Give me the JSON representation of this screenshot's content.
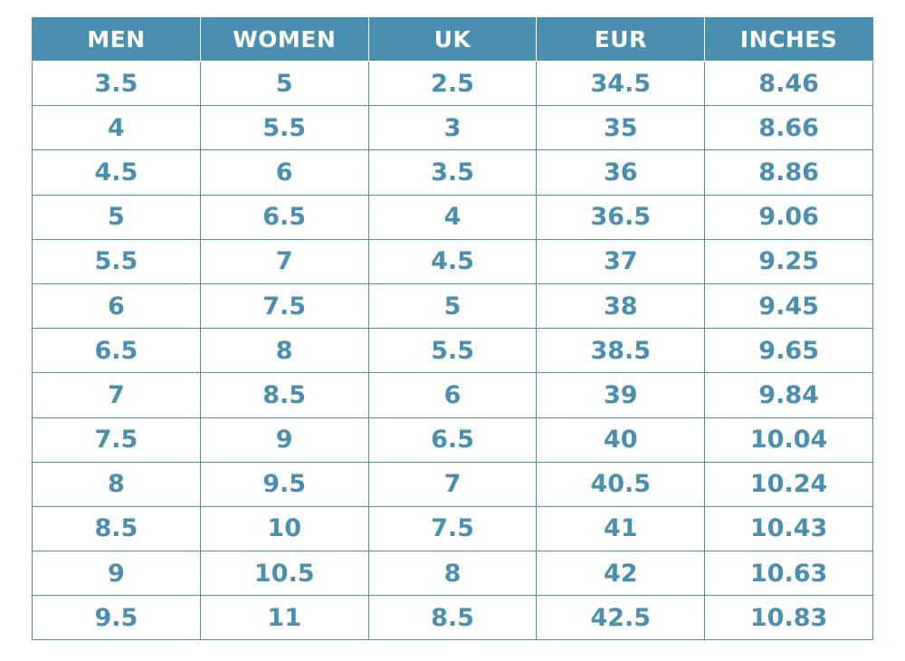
{
  "table": {
    "headers": [
      "MEN",
      "WOMEN",
      "UK",
      "EUR",
      "INCHES"
    ],
    "rows": [
      [
        "3.5",
        "5",
        "2.5",
        "34.5",
        "8.46"
      ],
      [
        "4",
        "5.5",
        "3",
        "35",
        "8.66"
      ],
      [
        "4.5",
        "6",
        "3.5",
        "36",
        "8.86"
      ],
      [
        "5",
        "6.5",
        "4",
        "36.5",
        "9.06"
      ],
      [
        "5.5",
        "7",
        "4.5",
        "37",
        "9.25"
      ],
      [
        "6",
        "7.5",
        "5",
        "38",
        "9.45"
      ],
      [
        "6.5",
        "8",
        "5.5",
        "38.5",
        "9.65"
      ],
      [
        "7",
        "8.5",
        "6",
        "39",
        "9.84"
      ],
      [
        "7.5",
        "9",
        "6.5",
        "40",
        "10.04"
      ],
      [
        "8",
        "9.5",
        "7",
        "40.5",
        "10.24"
      ],
      [
        "8.5",
        "10",
        "7.5",
        "41",
        "10.43"
      ],
      [
        "9",
        "10.5",
        "8",
        "42",
        "10.63"
      ],
      [
        "9.5",
        "11",
        "8.5",
        "42.5",
        "10.83"
      ]
    ]
  },
  "colors": {
    "header_bg": "#4b8fb0",
    "header_text": "#ffffff",
    "cell_text": "#4a8fb0",
    "border": "#4f90ad"
  }
}
